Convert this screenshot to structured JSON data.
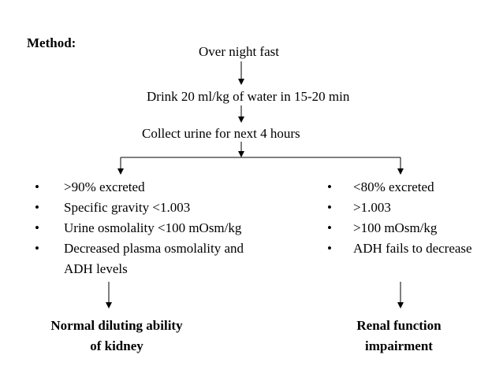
{
  "method_label": "Method:",
  "steps": [
    "Over night fast",
    "Drink 20 ml/kg of water in 15-20 min",
    "Collect urine for next 4 hours"
  ],
  "bullet_char": "•",
  "left_branch": {
    "items": [
      ">90%  excreted",
      "Specific gravity <1.003",
      "Urine osmolality <100 mOsm/kg",
      "Decreased plasma osmolality and"
    ],
    "continuation": "ADH levels",
    "outcome_line1": "Normal diluting ability",
    "outcome_line2": "of kidney"
  },
  "right_branch": {
    "items": [
      "<80%  excreted",
      ">1.003",
      ">100 mOsm/kg",
      "ADH fails to decrease"
    ],
    "outcome_line1": "Renal function",
    "outcome_line2": "impairment"
  }
}
